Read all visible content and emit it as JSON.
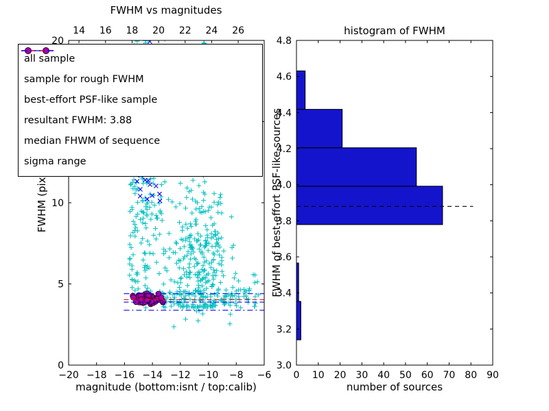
{
  "colors": {
    "cyan": "#00bfbf",
    "blue": "#0000ff",
    "red": "#ff0000",
    "purple_fill": "#aa00aa",
    "purple_edge": "#1a001a",
    "hist_fill": "#1414cc",
    "axis": "#000000"
  },
  "left_plot": {
    "title": "FWHM vs magnitudes",
    "xlabel": "magnitude (bottom:isnt / top:calib)",
    "ylabel": "FWHM (pix)",
    "xlim": [
      -20,
      -6
    ],
    "xlim_top": [
      13.22,
      27.96
    ],
    "ylim": [
      0,
      20
    ],
    "x_ticks_bottom": {
      "values": [
        -20,
        -18,
        -16,
        -14,
        -12,
        -10,
        -8,
        -6
      ],
      "labels": [
        "−20",
        "−18",
        "−16",
        "−14",
        "−12",
        "−10",
        "−8",
        "−6"
      ]
    },
    "x_ticks_top": {
      "values": [
        14,
        16,
        18,
        20,
        22,
        24,
        26
      ],
      "labels": [
        "14",
        "16",
        "18",
        "20",
        "22",
        "24",
        "26"
      ]
    },
    "y_ticks": {
      "values": [
        0,
        5,
        10,
        15,
        20
      ],
      "labels": [
        "0",
        "5",
        "10",
        "15",
        "20"
      ]
    },
    "legend": [
      {
        "label": "all sample",
        "marker": "plus",
        "color": "cyan"
      },
      {
        "label": "sample for rough FWHM",
        "marker": "x",
        "color": "blue"
      },
      {
        "label": "best-effort PSF-like sample",
        "marker": "circle",
        "color": "purple"
      },
      {
        "label": "resultant FWHM: 3.88",
        "line": "dashed",
        "color": "blue"
      },
      {
        "label": "median FHWM of sequence",
        "line": "dashed",
        "color": "red"
      },
      {
        "label": "sigma range",
        "line": "dashdot",
        "color": "blue"
      }
    ]
  },
  "right_plot": {
    "title": "histogram of FWHM",
    "xlabel": "number of sources",
    "ylabel": "FWHM of best-effort PSF-like sources",
    "xlim": [
      0,
      90
    ],
    "ylim": [
      3.0,
      4.8
    ],
    "x_ticks": {
      "values": [
        0,
        10,
        20,
        30,
        40,
        50,
        60,
        70,
        80,
        90
      ],
      "labels": [
        "0",
        "10",
        "20",
        "30",
        "40",
        "50",
        "60",
        "70",
        "80",
        "90"
      ]
    },
    "y_ticks": {
      "values": [
        3.0,
        3.2,
        3.4,
        3.6,
        3.8,
        4.0,
        4.2,
        4.4,
        4.6,
        4.8
      ],
      "labels": [
        "3.0",
        "3.2",
        "3.4",
        "3.6",
        "3.8",
        "4.0",
        "4.2",
        "4.4",
        "4.6",
        "4.8"
      ]
    }
  },
  "chart_data": [
    {
      "type": "scatter",
      "title": "FWHM vs magnitudes",
      "xlabel": "magnitude (bottom:isnt / top:calib)",
      "ylabel": "FWHM (pix)",
      "xlim": [
        -20,
        -6
      ],
      "ylim": [
        0,
        20
      ],
      "series": [
        {
          "name": "all sample",
          "marker": "+",
          "color": "#00bfbf",
          "clusters": [
            {
              "dist": "uniform",
              "n": 120,
              "x": [
                -15.65,
                -14.1
              ],
              "y": [
                4.3,
                13.5
              ]
            },
            {
              "dist": "uniform",
              "n": 55,
              "x": [
                -15.5,
                -14.15
              ],
              "y": [
                13.5,
                20.2
              ]
            },
            {
              "dist": "uniform",
              "n": 45,
              "x": [
                -14.1,
                -13.0
              ],
              "y": [
                5.5,
                15.0
              ]
            },
            {
              "dist": "gauss",
              "n": 230,
              "x_mean": -10.7,
              "x_sd": 1.05,
              "x_clip": [
                -13.2,
                -8.2
              ],
              "y_mean": 7.2,
              "y_sd": 2.4,
              "y_clip": [
                3.6,
                14.5
              ]
            },
            {
              "dist": "uniform",
              "n": 40,
              "x": [
                -13.2,
                -9.8
              ],
              "y": [
                14.5,
                20.3
              ]
            },
            {
              "dist": "uniform",
              "n": 95,
              "x": [
                -14.6,
                -7.0
              ],
              "y": [
                3.5,
                4.7
              ]
            },
            {
              "dist": "uniform",
              "n": 22,
              "x": [
                -9.2,
                -6.1
              ],
              "y": [
                3.5,
                5.8
              ]
            },
            {
              "dist": "gauss",
              "n": 60,
              "x_mean": -10.3,
              "x_sd": 0.7,
              "x_clip": [
                -12.0,
                -8.8
              ],
              "y_mean": 5.5,
              "y_sd": 1.0,
              "y_clip": [
                3.8,
                8.0
              ]
            },
            {
              "dist": "uniform",
              "n": 8,
              "x": [
                -12.5,
                -8.0
              ],
              "y": [
                2.3,
                3.4
              ]
            }
          ]
        },
        {
          "name": "sample for rough FWHM",
          "marker": "x",
          "color": "#0000ff",
          "clusters": [
            {
              "dist": "uniform",
              "n": 20,
              "x": [
                -15.15,
                -13.45
              ],
              "y": [
                9.8,
                12.5
              ]
            },
            {
              "dist": "uniform",
              "n": 4,
              "x": [
                -15.0,
                -12.0
              ],
              "y": [
                19.0,
                20.2
              ]
            }
          ]
        },
        {
          "name": "best-effort PSF-like sample",
          "marker": "o",
          "color": "#aa00aa",
          "clusters": [
            {
              "dist": "gauss",
              "n": 55,
              "x_mean": -14.4,
              "x_sd": 0.55,
              "x_clip": [
                -15.55,
                -13.25
              ],
              "y_mean": 4.05,
              "y_sd": 0.16,
              "y_clip": [
                3.72,
                4.42
              ]
            }
          ]
        }
      ],
      "hlines": [
        {
          "name": "resultant FWHM",
          "y": 3.88,
          "style": "dashed",
          "color": "#0000ff",
          "x_range": [
            -16.05,
            -6
          ]
        },
        {
          "name": "median FWHM of sequence",
          "y": 4.03,
          "style": "dashed",
          "color": "#ff0000",
          "x_range": [
            -16.05,
            -6
          ]
        },
        {
          "name": "sigma range upper",
          "y": 4.4,
          "style": "dashdot",
          "color": "#0000ff",
          "x_range": [
            -16.05,
            -6
          ]
        },
        {
          "name": "sigma range lower",
          "y": 3.38,
          "style": "dashdot",
          "color": "#0000ff",
          "x_range": [
            -16.05,
            -6
          ]
        }
      ]
    },
    {
      "type": "bar",
      "orientation": "horizontal",
      "title": "histogram of FWHM",
      "xlabel": "number of sources",
      "ylabel": "FWHM of best-effort PSF-like sources",
      "xlim": [
        0,
        90
      ],
      "ylim": [
        3.0,
        4.8
      ],
      "bin_edges": [
        3.14,
        3.353,
        3.566,
        3.779,
        3.992,
        4.205,
        4.418,
        4.631
      ],
      "counts": [
        2,
        1,
        0,
        67,
        55,
        21,
        4
      ],
      "dashed_line": {
        "y": 3.88,
        "x_start": 0,
        "x_end": 81,
        "style": "dashed",
        "color": "#000000"
      }
    }
  ]
}
